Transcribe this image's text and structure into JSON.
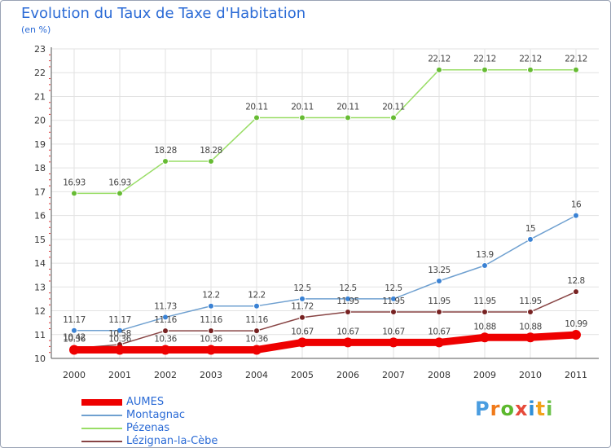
{
  "title": "Evolution du Taux de Taxe d'Habitation",
  "unit": "(en %)",
  "logo": {
    "letters": [
      "P",
      "r",
      "o",
      "x",
      "i",
      "t",
      "i"
    ],
    "colors": [
      "#4a9de0",
      "#f07a1a",
      "#5cb82e",
      "#e64a3a",
      "#2f8fd8",
      "#f2a21c",
      "#6cc24a"
    ]
  },
  "chart_data": {
    "type": "line",
    "title": "Evolution du Taux de Taxe d'Habitation",
    "ylabel": "(en %)",
    "xlabel": "",
    "categories": [
      "2000",
      "2001",
      "2002",
      "2003",
      "2004",
      "2005",
      "2006",
      "2007",
      "2008",
      "2009",
      "2010",
      "2011"
    ],
    "ylim": [
      10,
      23
    ],
    "yticks": [
      "10",
      "11",
      "12",
      "13",
      "14",
      "15",
      "16",
      "17",
      "18",
      "19",
      "20",
      "21",
      "22",
      "23"
    ],
    "grid": true,
    "legend": "bottom-left",
    "series": [
      {
        "name": "AUMES",
        "color": "#ee0000",
        "values": [
          10.36,
          10.36,
          10.36,
          10.36,
          10.36,
          10.67,
          10.67,
          10.67,
          10.67,
          10.88,
          10.88,
          10.99
        ],
        "labels": [
          "10.36",
          "10.36",
          "10.36",
          "10.36",
          "10.36",
          "10.67",
          "10.67",
          "10.67",
          "10.67",
          "10.88",
          "10.88",
          "10.99"
        ]
      },
      {
        "name": "Montagnac",
        "color": "#6fa0d0",
        "marker": "#3a82d4",
        "values": [
          11.17,
          11.17,
          11.73,
          12.2,
          12.2,
          12.5,
          12.5,
          12.5,
          13.25,
          13.9,
          15,
          16
        ],
        "labels": [
          "11.17",
          "11.17",
          "11.73",
          "12.2",
          "12.2",
          "12.5",
          "12.5",
          "12.5",
          "13.25",
          "13.9",
          "15",
          "16"
        ]
      },
      {
        "name": "Pézenas",
        "color": "#99dd66",
        "marker": "#66bb33",
        "values": [
          16.93,
          16.93,
          18.28,
          18.28,
          20.11,
          20.11,
          20.11,
          20.11,
          22.12,
          22.12,
          22.12,
          22.12
        ],
        "labels": [
          "16.93",
          "16.93",
          "18.28",
          "18.28",
          "20.11",
          "20.11",
          "20.11",
          "20.11",
          "22.12",
          "22.12",
          "22.12",
          "22.12"
        ]
      },
      {
        "name": "Lézignan-la-Cèbe",
        "color": "#884444",
        "marker": "#772222",
        "values": [
          10.42,
          10.58,
          11.16,
          11.16,
          11.16,
          11.72,
          11.95,
          11.95,
          11.95,
          11.95,
          11.95,
          12.8
        ],
        "labels": [
          "10.42",
          "10.58",
          "11.16",
          "11.16",
          "11.16",
          "11.72",
          "11.95",
          "11.95",
          "11.95",
          "11.95",
          "11.95",
          "12.8"
        ]
      }
    ]
  }
}
